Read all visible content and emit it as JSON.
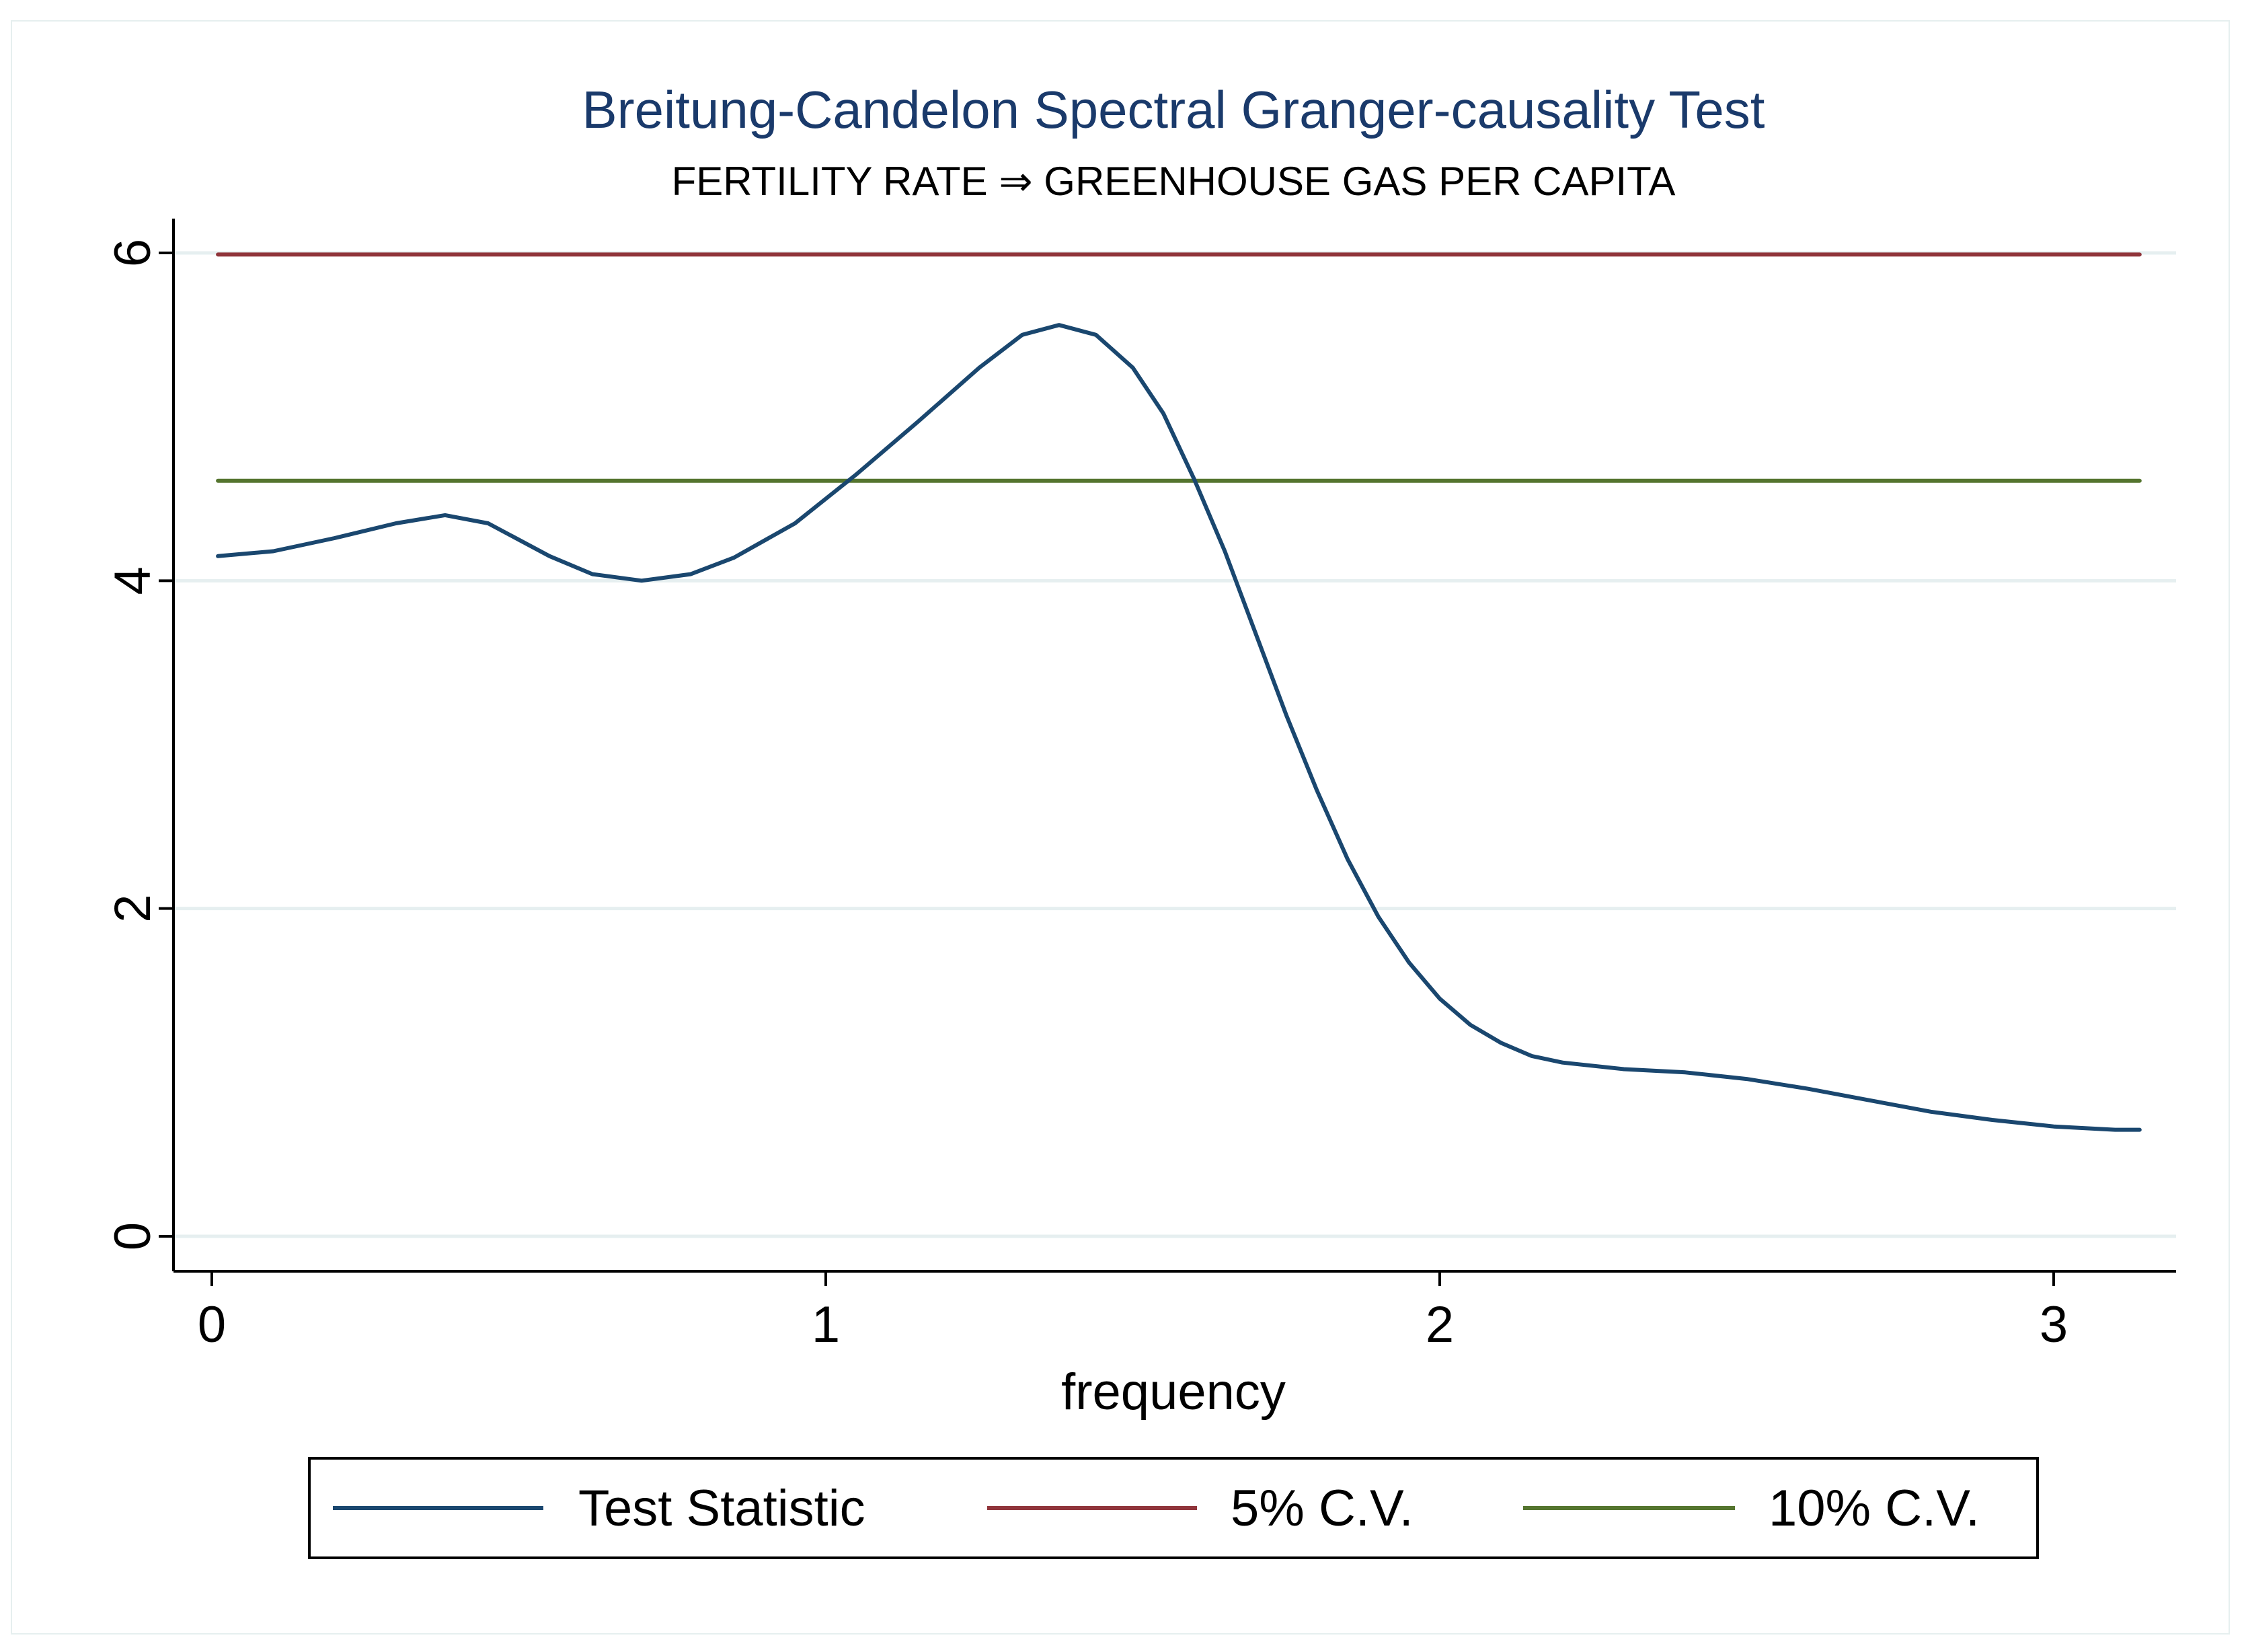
{
  "chart_data": {
    "type": "line",
    "title": "Breitung-Candelon Spectral Granger-causality Test",
    "subtitle": "FERTILITY RATE ⇒ GREENHOUSE GAS PER CAPITA",
    "xlabel": "frequency",
    "ylabel": "",
    "xlim": [
      0,
      3.1416
    ],
    "ylim": [
      0,
      6
    ],
    "x_ticks": [
      "0",
      "1",
      "2",
      "3"
    ],
    "y_ticks": [
      "0",
      "2",
      "4",
      "6"
    ],
    "grid": true,
    "legend_position": "bottom",
    "series": [
      {
        "name": "Test Statistic",
        "color": "#1a476f",
        "x": [
          0.01,
          0.1,
          0.2,
          0.3,
          0.38,
          0.45,
          0.55,
          0.62,
          0.7,
          0.78,
          0.85,
          0.95,
          1.05,
          1.15,
          1.25,
          1.32,
          1.38,
          1.44,
          1.5,
          1.55,
          1.6,
          1.65,
          1.7,
          1.75,
          1.8,
          1.85,
          1.9,
          1.95,
          2.0,
          2.05,
          2.1,
          2.15,
          2.2,
          2.3,
          2.4,
          2.5,
          2.6,
          2.7,
          2.8,
          2.9,
          3.0,
          3.1,
          3.14
        ],
        "values": [
          4.15,
          4.18,
          4.26,
          4.35,
          4.4,
          4.35,
          4.15,
          4.04,
          4.0,
          4.04,
          4.14,
          4.35,
          4.65,
          4.97,
          5.3,
          5.5,
          5.56,
          5.5,
          5.3,
          5.02,
          4.62,
          4.18,
          3.68,
          3.18,
          2.72,
          2.3,
          1.95,
          1.67,
          1.45,
          1.29,
          1.18,
          1.1,
          1.06,
          1.02,
          1.0,
          0.96,
          0.9,
          0.83,
          0.76,
          0.71,
          0.67,
          0.65,
          0.65
        ]
      },
      {
        "name": "5% C.V.",
        "color": "#90353b",
        "x": [
          0.01,
          3.14
        ],
        "values": [
          5.99,
          5.99
        ]
      },
      {
        "name": "10% C.V.",
        "color": "#55752f",
        "x": [
          0.01,
          3.14
        ],
        "values": [
          4.61,
          4.61
        ]
      }
    ]
  }
}
